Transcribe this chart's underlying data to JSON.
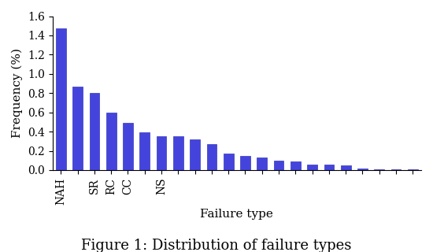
{
  "values": [
    1.47,
    0.87,
    0.8,
    0.6,
    0.49,
    0.39,
    0.35,
    0.35,
    0.32,
    0.27,
    0.17,
    0.15,
    0.13,
    0.1,
    0.09,
    0.06,
    0.06,
    0.05,
    0.02,
    0.01,
    0.005,
    0.005
  ],
  "tick_labels": [
    "NAH",
    "",
    "SR",
    "RC",
    "CC",
    "",
    "NS",
    "",
    "",
    "",
    "",
    "",
    "",
    "",
    "",
    "",
    "",
    "",
    "",
    "",
    "",
    ""
  ],
  "bar_color": "#4444dd",
  "bar_edgecolor": "#3333bb",
  "ylabel": "Frequency (%)",
  "xlabel": "Failure type",
  "caption": "Figure 1: Distribution of failure types",
  "ylim": [
    0,
    1.6
  ],
  "yticks": [
    0,
    0.2,
    0.4,
    0.6,
    0.8,
    1.0,
    1.2,
    1.4,
    1.6
  ],
  "caption_fontsize": 13,
  "label_fontsize": 11,
  "tick_fontsize": 10,
  "bar_width": 0.6
}
